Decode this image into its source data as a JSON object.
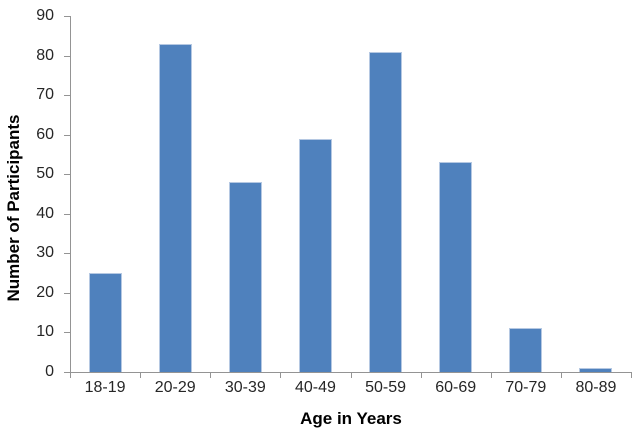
{
  "chart_data": {
    "type": "bar",
    "title": "",
    "categories": [
      "18-19",
      "20-29",
      "30-39",
      "40-49",
      "50-59",
      "60-69",
      "70-79",
      "80-89"
    ],
    "values": [
      25,
      83,
      48,
      59,
      81,
      53,
      11,
      1
    ],
    "xlabel": "Age in Years",
    "ylabel": "Number of Participants",
    "ylim": [
      0,
      90
    ],
    "ytick_step": 10,
    "yticks": [
      0,
      10,
      20,
      30,
      40,
      50,
      60,
      70,
      80,
      90
    ],
    "grid": false,
    "legend": "none",
    "colors": {
      "bar_fill": "#4F81BD",
      "bar_border": "#B5C8E2",
      "axis_line": "#949494",
      "tick_label": "#262626",
      "axis_title": "#000000",
      "background": "#FFFFFF"
    }
  }
}
